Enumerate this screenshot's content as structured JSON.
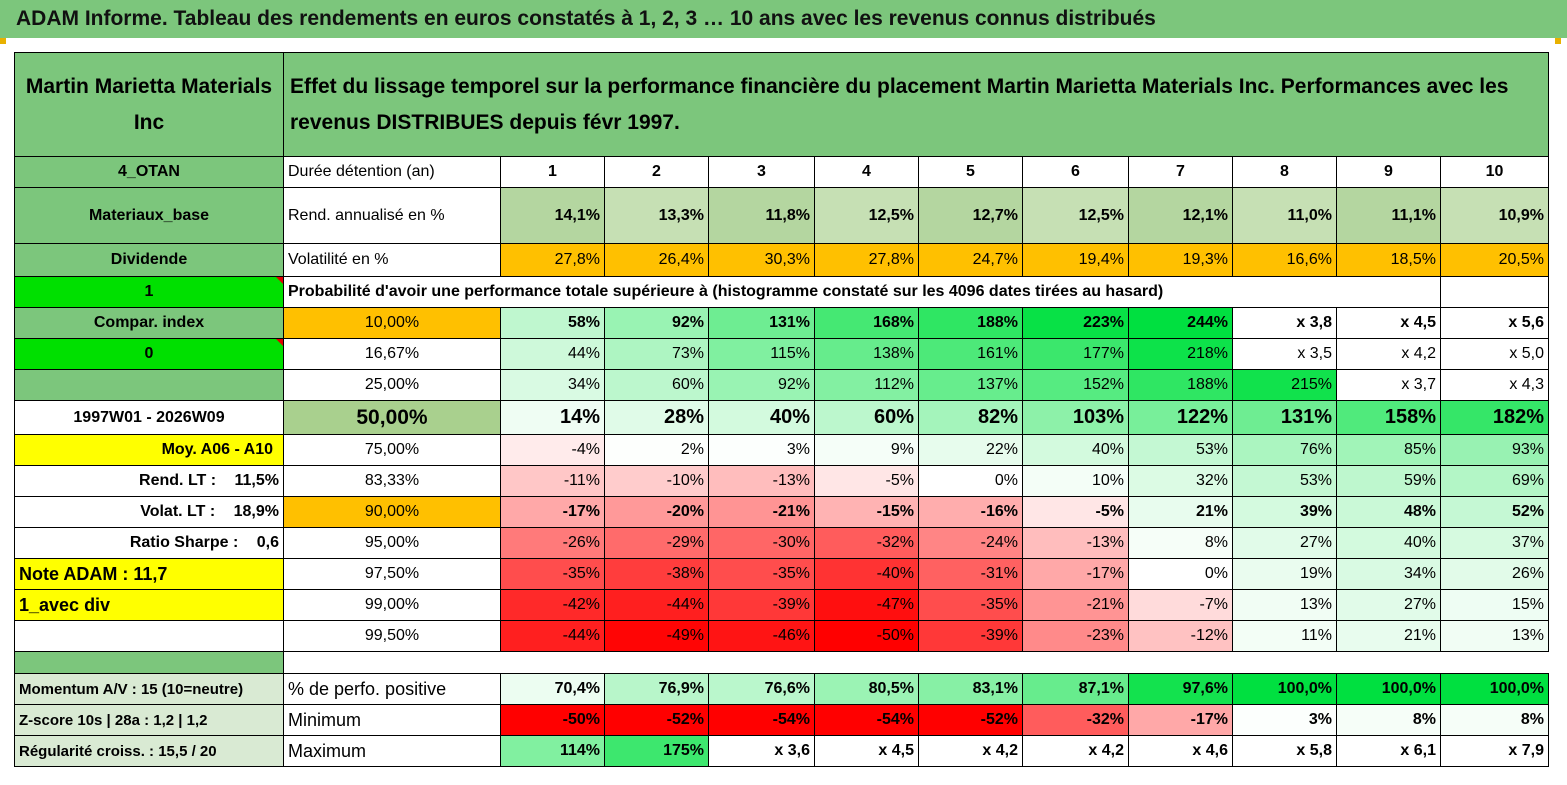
{
  "title": "ADAM Informe. Tableau des rendements en euros constatés à 1, 2, 3 … 10 ans avec les revenus connus distribués",
  "header": {
    "company": "Martin Marietta Materials Inc",
    "description": "Effet du lissage temporel sur la performance financière du placement Martin Marietta Materials Inc. Performances avec les revenus DISTRIBUES depuis févr 1997."
  },
  "left": {
    "r1": "4_OTAN",
    "r2": "Materiaux_base",
    "r3": "Dividende",
    "r4": "1",
    "r5": "Compar. index",
    "r6": "0",
    "r7": "",
    "r8": "1997W01 - 2026W09",
    "r9": "Moy. A06 - A10",
    "r10_label": "Rend. LT :",
    "r10_value": "11,5%",
    "r11_label": "Volat. LT :",
    "r11_value": "18,9%",
    "r12_label": "Ratio Sharpe :",
    "r12_value": "0,6",
    "r13": "Note ADAM : 11,7",
    "r14": "1_avec div",
    "r15": "",
    "m1": "Momentum A/V : 15 (10=neutre)",
    "m2": "Z-score 10s | 28a : 1,2 | 1,2",
    "m3": "Régularité croiss. : 15,5 / 20"
  },
  "labels": {
    "duree": "Durée détention (an)",
    "rend": "Rend. annualisé en %",
    "vol": "Volatilité en %",
    "prob": "Probabilité d'avoir une performance totale supérieure à (histogramme constaté sur les 4096 dates tirées au hasard)",
    "pos": "% de perfo. positive",
    "min": "Minimum",
    "max": "Maximum"
  },
  "years": [
    "1",
    "2",
    "3",
    "4",
    "5",
    "6",
    "7",
    "8",
    "9",
    "10"
  ],
  "rend": [
    "14,1%",
    "13,3%",
    "11,8%",
    "12,5%",
    "12,7%",
    "12,5%",
    "12,1%",
    "11,0%",
    "11,1%",
    "10,9%"
  ],
  "vol": [
    "27,8%",
    "26,4%",
    "30,3%",
    "27,8%",
    "24,7%",
    "19,4%",
    "19,3%",
    "16,6%",
    "18,5%",
    "20,5%"
  ],
  "prob_rows": [
    {
      "p": "10,00%",
      "v": [
        "58%",
        "92%",
        "131%",
        "168%",
        "188%",
        "223%",
        "244%",
        "x 3,8",
        "x 4,5",
        "x 5,6"
      ]
    },
    {
      "p": "16,67%",
      "v": [
        "44%",
        "73%",
        "115%",
        "138%",
        "161%",
        "177%",
        "218%",
        "x 3,5",
        "x 4,2",
        "x 5,0"
      ]
    },
    {
      "p": "25,00%",
      "v": [
        "34%",
        "60%",
        "92%",
        "112%",
        "137%",
        "152%",
        "188%",
        "215%",
        "x 3,7",
        "x 4,3"
      ]
    },
    {
      "p": "50,00%",
      "v": [
        "14%",
        "28%",
        "40%",
        "60%",
        "82%",
        "103%",
        "122%",
        "131%",
        "158%",
        "182%"
      ]
    },
    {
      "p": "75,00%",
      "v": [
        "-4%",
        "2%",
        "3%",
        "9%",
        "22%",
        "40%",
        "53%",
        "76%",
        "85%",
        "93%"
      ]
    },
    {
      "p": "83,33%",
      "v": [
        "-11%",
        "-10%",
        "-13%",
        "-5%",
        "0%",
        "10%",
        "32%",
        "53%",
        "59%",
        "69%"
      ]
    },
    {
      "p": "90,00%",
      "v": [
        "-17%",
        "-20%",
        "-21%",
        "-15%",
        "-16%",
        "-5%",
        "21%",
        "39%",
        "48%",
        "52%"
      ]
    },
    {
      "p": "95,00%",
      "v": [
        "-26%",
        "-29%",
        "-30%",
        "-32%",
        "-24%",
        "-13%",
        "8%",
        "27%",
        "40%",
        "37%"
      ]
    },
    {
      "p": "97,50%",
      "v": [
        "-35%",
        "-38%",
        "-35%",
        "-40%",
        "-31%",
        "-17%",
        "0%",
        "19%",
        "34%",
        "26%"
      ]
    },
    {
      "p": "99,00%",
      "v": [
        "-42%",
        "-44%",
        "-39%",
        "-47%",
        "-35%",
        "-21%",
        "-7%",
        "13%",
        "27%",
        "15%"
      ]
    },
    {
      "p": "99,50%",
      "v": [
        "-44%",
        "-49%",
        "-46%",
        "-50%",
        "-39%",
        "-23%",
        "-12%",
        "11%",
        "21%",
        "13%"
      ]
    }
  ],
  "pos": [
    "70,4%",
    "76,9%",
    "76,6%",
    "80,5%",
    "83,1%",
    "87,1%",
    "97,6%",
    "100,0%",
    "100,0%",
    "100,0%"
  ],
  "min": [
    "-50%",
    "-52%",
    "-54%",
    "-54%",
    "-52%",
    "-32%",
    "-17%",
    "3%",
    "8%",
    "8%"
  ],
  "max": [
    "114%",
    "175%",
    "x 3,6",
    "x 4,5",
    "x 4,2",
    "x 4,2",
    "x 4,6",
    "x 5,8",
    "x 6,1",
    "x 7,9"
  ],
  "colors": {
    "header_green": "#7cc67c",
    "bright_green": "#00e000",
    "orange": "#ffc000",
    "yellow": "#ffff00",
    "red_text": "#e00000"
  }
}
